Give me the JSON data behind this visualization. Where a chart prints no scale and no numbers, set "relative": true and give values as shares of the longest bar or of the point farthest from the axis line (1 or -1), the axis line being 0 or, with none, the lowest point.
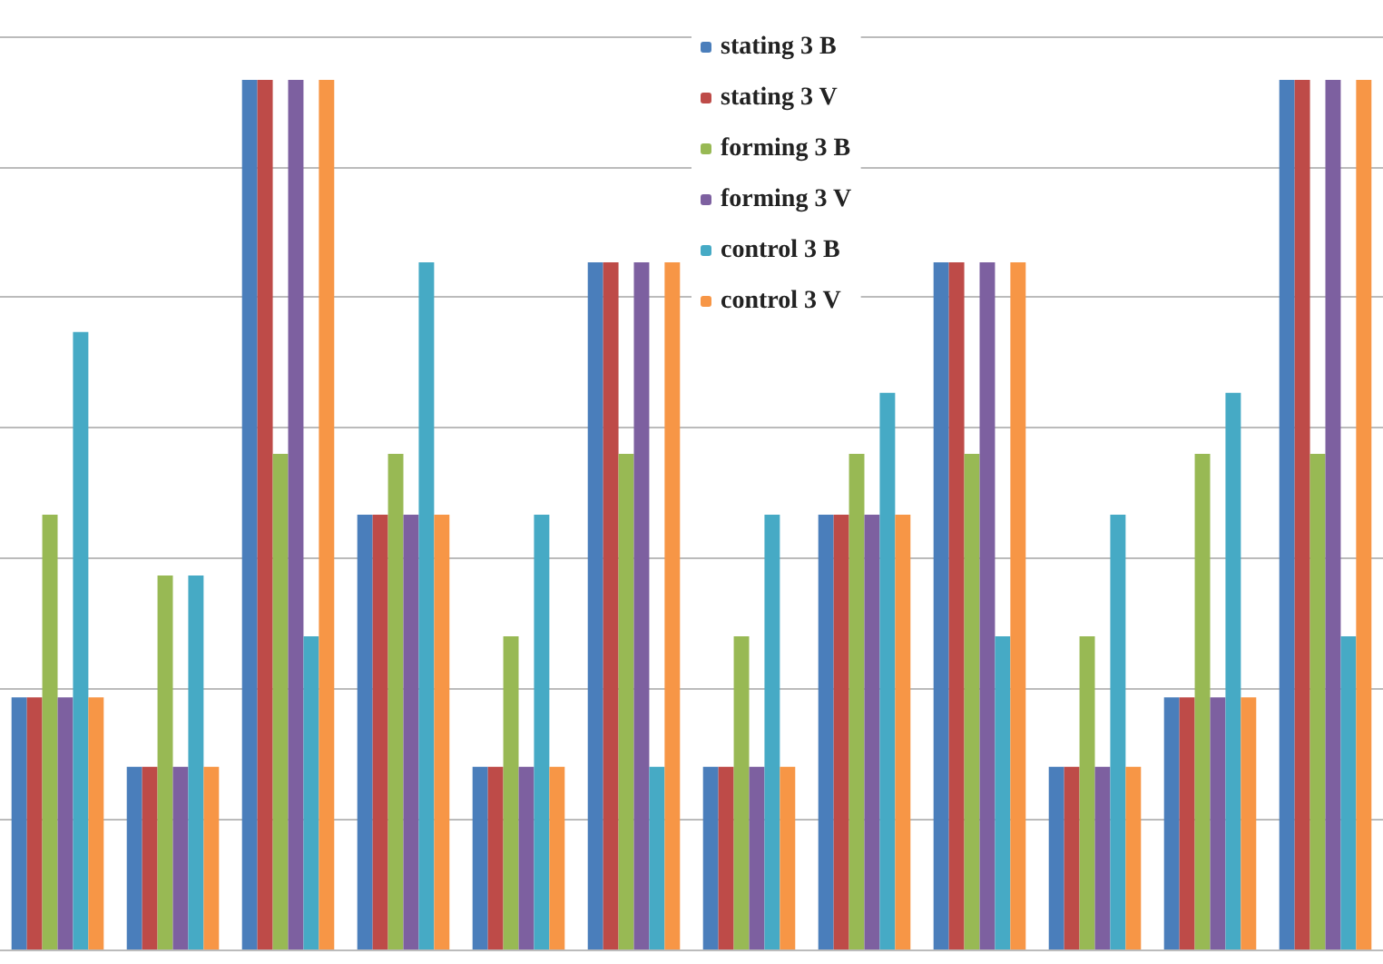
{
  "chart_data": {
    "type": "bar",
    "relative": true,
    "grid": "y",
    "legend": "top",
    "categories": [
      null,
      null,
      null,
      null,
      null,
      null,
      null,
      null,
      null,
      null,
      null,
      null
    ],
    "series": [
      {
        "name": "stating 3 B",
        "color": "#4a7ebb",
        "values": [
          0.29,
          0.21,
          1,
          0.5,
          0.21,
          0.79,
          0.21,
          0.5,
          0.79,
          0.21,
          0.29,
          1
        ]
      },
      {
        "name": "stating 3 V",
        "color": "#be4b48",
        "values": [
          0.29,
          0.21,
          1,
          0.5,
          0.21,
          0.79,
          0.21,
          0.5,
          0.79,
          0.21,
          0.29,
          1
        ]
      },
      {
        "name": "forming 3 B",
        "color": "#98b954",
        "values": [
          0.5,
          0.43,
          0.57,
          0.57,
          0.36,
          0.57,
          0.36,
          0.57,
          0.57,
          0.36,
          0.57,
          0.57
        ]
      },
      {
        "name": "forming 3 V",
        "color": "#7d60a0",
        "values": [
          0.29,
          0.21,
          1,
          0.5,
          0.21,
          0.79,
          0.21,
          0.5,
          0.79,
          0.21,
          0.29,
          1
        ]
      },
      {
        "name": "control 3 B",
        "color": "#46aac5",
        "values": [
          0.71,
          0.43,
          0.36,
          0.79,
          0.5,
          0.21,
          0.5,
          0.64,
          0.36,
          0.5,
          0.64,
          0.36
        ]
      },
      {
        "name": "control 3 V",
        "color": "#f79646",
        "values": [
          0.29,
          0.21,
          1,
          0.5,
          0.21,
          0.79,
          0.21,
          0.5,
          0.79,
          0.21,
          0.29,
          1
        ]
      }
    ]
  }
}
